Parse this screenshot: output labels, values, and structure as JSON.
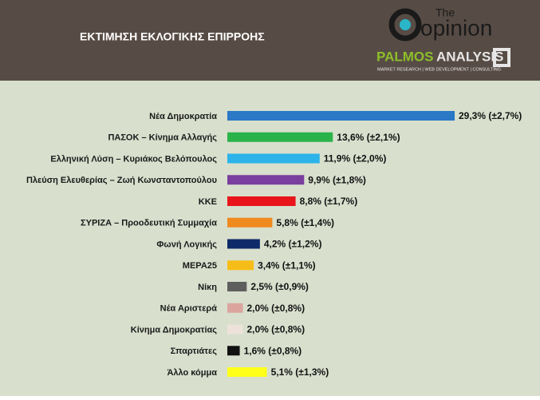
{
  "header": {
    "title": "ΕΚΤΙΜΗΣΗ ΕΚΛΟΓΙΚΗΣ ΕΠΙΡΡΟΗΣ",
    "logo_small": "The",
    "logo_main": "opinion",
    "partner_a": "PALMOS",
    "partner_b": "ANALYSIS",
    "partner_tagline": "MARKET RESEARCH | WEB DEVELOPMENT | CONSULTING"
  },
  "chart_data": {
    "type": "bar",
    "orientation": "horizontal",
    "categories": [
      "Νέα Δημοκρατία",
      "ΠΑΣΟΚ – Κίνημα Αλλαγής",
      "Ελληνική Λύση – Κυριάκος Βελόπουλος",
      "Πλεύση Ελευθερίας – Ζωή Κωνσταντοπούλου",
      "ΚΚΕ",
      "ΣΥΡΙΖΑ – Προοδευτική Συμμαχία",
      "Φωνή Λογικής",
      "ΜΕΡΑ25",
      "Νίκη",
      "Νέα Αριστερά",
      "Κίνημα Δημοκρατίας",
      "Σπαρτιάτες",
      "Άλλο κόμμα"
    ],
    "values": [
      29.3,
      13.6,
      11.9,
      9.9,
      8.8,
      5.8,
      4.2,
      3.4,
      2.5,
      2.0,
      2.0,
      1.6,
      5.1
    ],
    "value_labels": [
      "29,3% (±2,7%)",
      "13,6% (±2,1%)",
      "11,9% (±2,0%)",
      "9,9% (±1,8%)",
      "8,8% (±1,7%)",
      "5,8% (±1,4%)",
      "4,2% (±1,2%)",
      "3,4% (±1,1%)",
      "2,5% (±0,9%)",
      "2,0% (±0,8%)",
      "2,0% (±0,8%)",
      "1,6% (±0,8%)",
      "5,1% (±1,3%)"
    ],
    "colors": [
      "#2a78c6",
      "#2bb34b",
      "#2bb3ea",
      "#7a3e9e",
      "#e8151b",
      "#ef8a1f",
      "#0f2a68",
      "#f6bd19",
      "#5e5e5e",
      "#dba59d",
      "#ede2da",
      "#111111",
      "#ffff1a"
    ]
  }
}
